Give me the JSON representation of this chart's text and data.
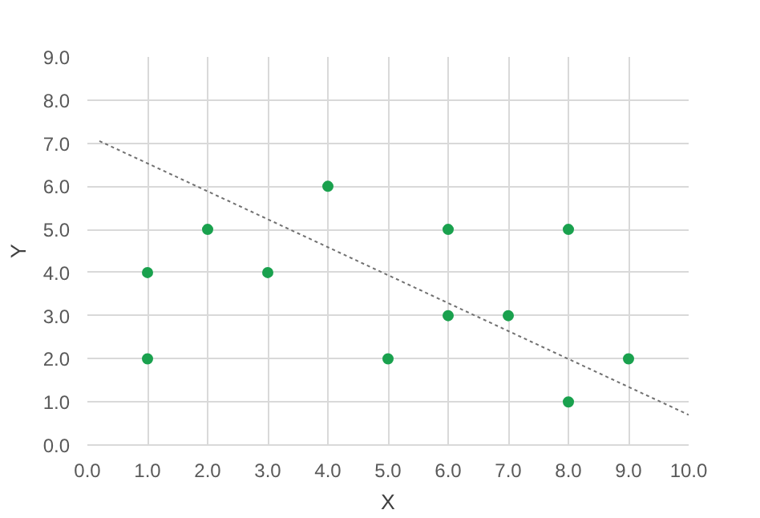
{
  "chart_data": {
    "type": "scatter",
    "xlabel": "X",
    "ylabel": "Y",
    "xlim": [
      0,
      10
    ],
    "ylim": [
      0,
      9
    ],
    "xticks": [
      {
        "value": 0,
        "label": "0.0"
      },
      {
        "value": 1,
        "label": "1.0"
      },
      {
        "value": 2,
        "label": "2.0"
      },
      {
        "value": 3,
        "label": "3.0"
      },
      {
        "value": 4,
        "label": "4.0"
      },
      {
        "value": 5,
        "label": "5.0"
      },
      {
        "value": 6,
        "label": "6.0"
      },
      {
        "value": 7,
        "label": "7.0"
      },
      {
        "value": 8,
        "label": "8.0"
      },
      {
        "value": 9,
        "label": "9.0"
      },
      {
        "value": 10,
        "label": "10.0"
      }
    ],
    "yticks": [
      {
        "value": 0,
        "label": "0.0"
      },
      {
        "value": 1,
        "label": "1.0"
      },
      {
        "value": 2,
        "label": "2.0"
      },
      {
        "value": 3,
        "label": "3.0"
      },
      {
        "value": 4,
        "label": "4.0"
      },
      {
        "value": 5,
        "label": "5.0"
      },
      {
        "value": 6,
        "label": "6.0"
      },
      {
        "value": 7,
        "label": "7.0"
      },
      {
        "value": 8,
        "label": "8.0"
      },
      {
        "value": 9,
        "label": "9.0"
      }
    ],
    "grid": true,
    "series": [
      {
        "marker": "circle",
        "color": "#1aa14e",
        "x": [
          1,
          1,
          2,
          3,
          4,
          5,
          6,
          6,
          7,
          8,
          8,
          9
        ],
        "values": [
          4,
          2,
          5,
          4,
          6,
          2,
          5,
          3,
          3,
          5,
          1,
          2
        ]
      },
      {
        "type": "line",
        "marker": "none",
        "color": "#707070",
        "line_style": "dotted",
        "x": [
          0.2,
          10
        ],
        "values": [
          7.05,
          0.7
        ]
      }
    ]
  }
}
